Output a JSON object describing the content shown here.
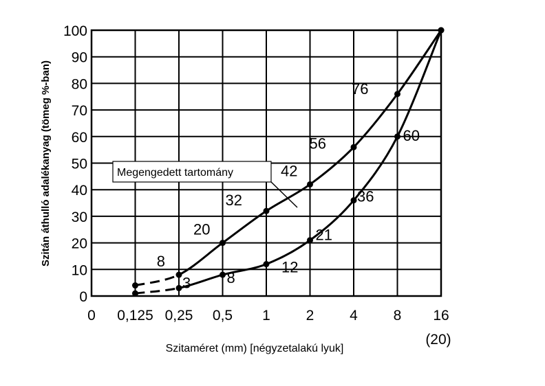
{
  "chart_data": {
    "type": "line",
    "title": "",
    "ylabel": "Szitán áthulló adalékanyag (tömeg %-ban)",
    "xlabel": "Szitaméret (mm) [négyzetalakú lyuk]",
    "x_tick_labels": [
      "0",
      "0,125",
      "0,25",
      "0,5",
      "1",
      "2",
      "4",
      "8",
      "16"
    ],
    "x_extra_label": "(20)",
    "y_tick_labels": [
      "0",
      "10",
      "20",
      "30",
      "40",
      "50",
      "60",
      "70",
      "80",
      "90",
      "100"
    ],
    "ylim": [
      0,
      100
    ],
    "grid": true,
    "annotation": "Megengedett tartomány",
    "series": [
      {
        "x": [
          "0,125",
          "0,25",
          "0,5",
          "1",
          "2",
          "4",
          "8",
          "16"
        ],
        "values": [
          4,
          8,
          20,
          32,
          42,
          56,
          76,
          100
        ],
        "labels": [
          "",
          "8",
          "20",
          "32",
          "42",
          "56",
          "76",
          ""
        ],
        "dashed_segments": [
          0
        ]
      },
      {
        "x": [
          "0,125",
          "0,25",
          "0,5",
          "1",
          "2",
          "4",
          "8",
          "16"
        ],
        "values": [
          1,
          3,
          8,
          12,
          21,
          36,
          60,
          100
        ],
        "labels": [
          "",
          "3",
          "8",
          "12",
          "21",
          "36",
          "60",
          ""
        ],
        "dashed_segments": [
          0
        ]
      }
    ]
  }
}
